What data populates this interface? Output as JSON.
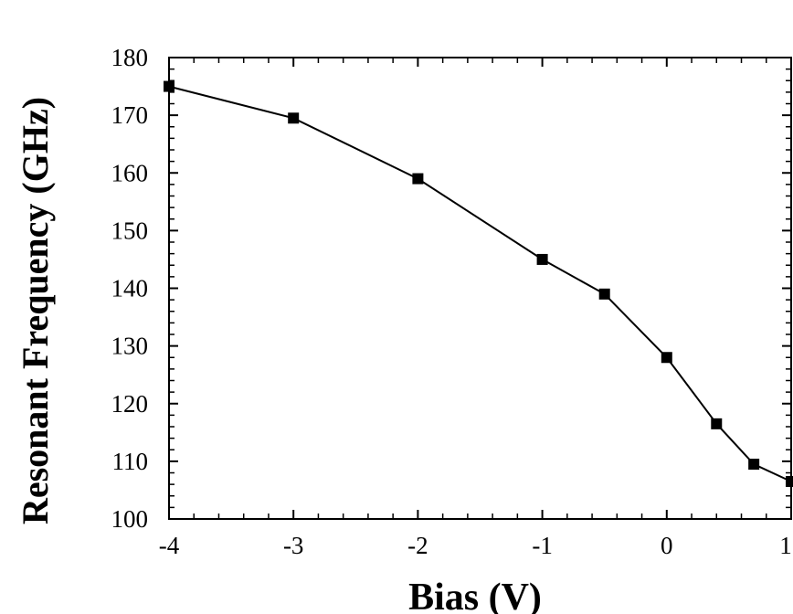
{
  "chart_data": {
    "type": "line",
    "xlabel": "Bias (V)",
    "ylabel": "Resonant Frequency (GHz)",
    "xlim": [
      -4,
      1
    ],
    "ylim": [
      100,
      180
    ],
    "x_ticks": [
      -4,
      -3,
      -2,
      -1,
      0,
      1
    ],
    "y_ticks": [
      100,
      110,
      120,
      130,
      140,
      150,
      160,
      170,
      180
    ],
    "grid": false,
    "marker": "square",
    "line_color": "#000000",
    "series": [
      {
        "x": [
          -4,
          -3,
          -2,
          -1,
          -0.5,
          0,
          0.4,
          0.7,
          1
        ],
        "y": [
          175,
          169.5,
          159,
          145,
          139,
          128,
          116.5,
          109.5,
          106.5
        ]
      }
    ]
  }
}
